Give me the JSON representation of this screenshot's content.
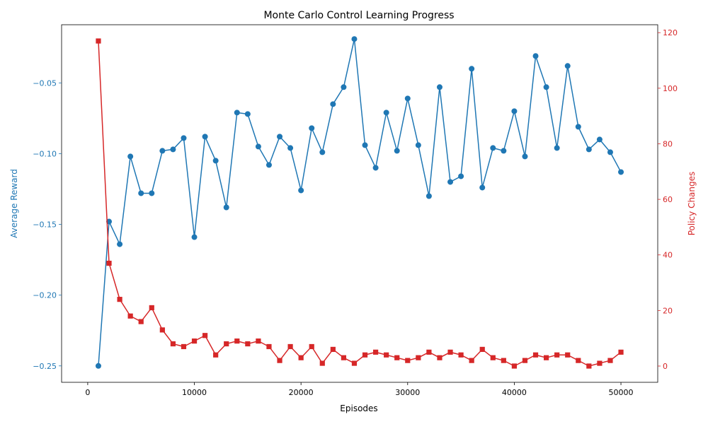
{
  "chart_data": {
    "type": "line",
    "title": "Monte Carlo Control Learning Progress",
    "xlabel": "Episodes",
    "ylabel_left": "Average Reward",
    "ylabel_right": "Policy Changes",
    "xlim": [
      -2450,
      53450
    ],
    "ylim_left": [
      -0.2616,
      -0.0089
    ],
    "ylim_right": [
      -5.85,
      122.85
    ],
    "xticks": [
      0,
      10000,
      20000,
      30000,
      40000,
      50000
    ],
    "xtick_labels": [
      "0",
      "10000",
      "20000",
      "30000",
      "40000",
      "50000"
    ],
    "yticks_left": [
      -0.25,
      -0.2,
      -0.15,
      -0.1,
      -0.05
    ],
    "ytick_labels_left": [
      "−0.25",
      "−0.20",
      "−0.15",
      "−0.10",
      "−0.05"
    ],
    "yticks_right": [
      0,
      20,
      40,
      60,
      80,
      100,
      120
    ],
    "ytick_labels_right": [
      "0",
      "20",
      "40",
      "60",
      "80",
      "100",
      "120"
    ],
    "x": [
      1000,
      2000,
      3000,
      4000,
      5000,
      6000,
      7000,
      8000,
      9000,
      10000,
      11000,
      12000,
      13000,
      14000,
      15000,
      16000,
      17000,
      18000,
      19000,
      20000,
      21000,
      22000,
      23000,
      24000,
      25000,
      26000,
      27000,
      28000,
      29000,
      30000,
      31000,
      32000,
      33000,
      34000,
      35000,
      36000,
      37000,
      38000,
      39000,
      40000,
      41000,
      42000,
      43000,
      44000,
      45000,
      46000,
      47000,
      48000,
      49000,
      50000
    ],
    "series": [
      {
        "axis": "left",
        "color": "#1f77b4",
        "marker": "circle",
        "values": [
          -0.25,
          -0.148,
          -0.164,
          -0.102,
          -0.128,
          -0.128,
          -0.098,
          -0.097,
          -0.089,
          -0.159,
          -0.088,
          -0.105,
          -0.138,
          -0.071,
          -0.072,
          -0.095,
          -0.108,
          -0.088,
          -0.096,
          -0.126,
          -0.082,
          -0.099,
          -0.065,
          -0.053,
          -0.019,
          -0.094,
          -0.11,
          -0.071,
          -0.098,
          -0.061,
          -0.094,
          -0.13,
          -0.053,
          -0.12,
          -0.116,
          -0.04,
          -0.124,
          -0.096,
          -0.098,
          -0.07,
          -0.102,
          -0.031,
          -0.053,
          -0.096,
          -0.038,
          -0.081,
          -0.097,
          -0.09,
          -0.099,
          -0.113
        ]
      },
      {
        "axis": "right",
        "color": "#d62728",
        "marker": "square",
        "values": [
          117,
          37,
          24,
          18,
          16,
          21,
          13,
          8,
          7,
          9,
          11,
          4,
          8,
          9,
          8,
          9,
          7,
          2,
          7,
          3,
          7,
          1,
          6,
          3,
          1,
          4,
          5,
          4,
          3,
          2,
          3,
          5,
          3,
          5,
          4,
          2,
          6,
          3,
          2,
          0,
          2,
          4,
          3,
          4,
          4,
          2,
          0,
          1,
          2,
          5
        ]
      }
    ]
  }
}
